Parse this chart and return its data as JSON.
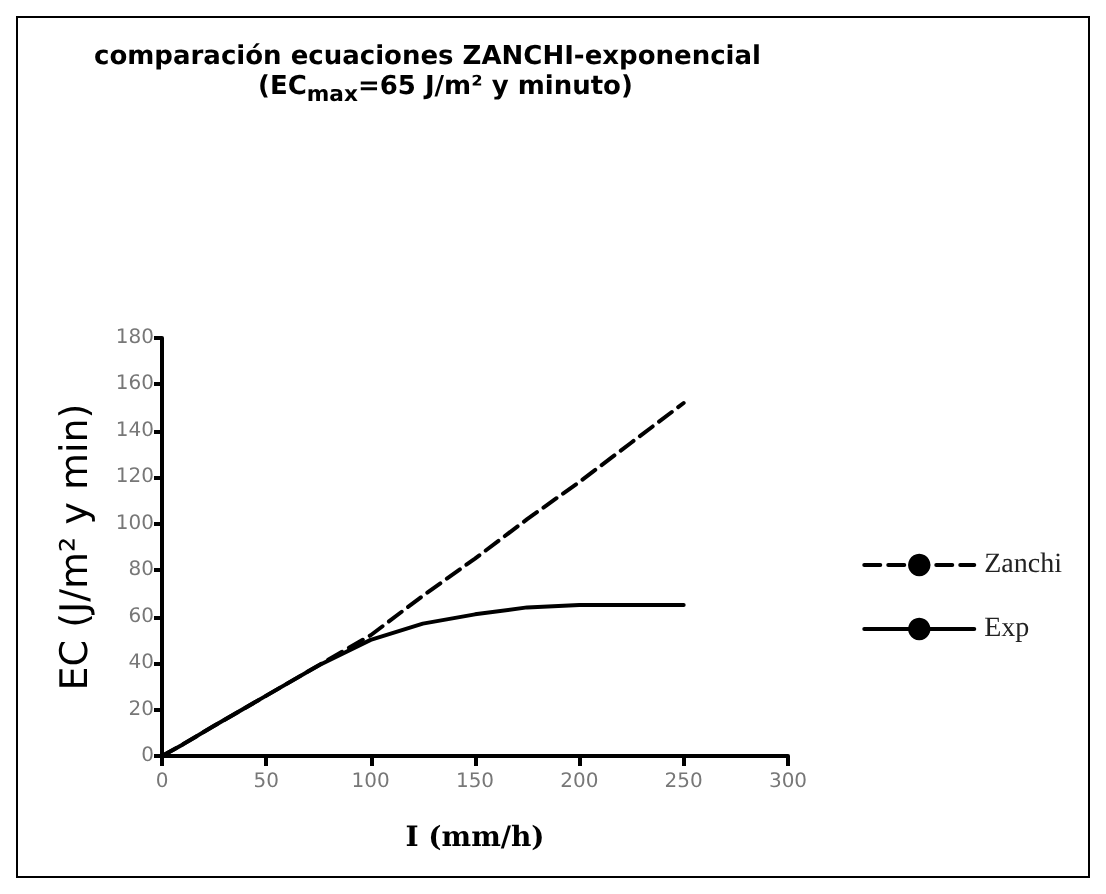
{
  "chart_data": {
    "type": "line",
    "title": "comparación ecuaciones ZANCHI-exponencial",
    "subtitle": "(EC$_{max}$=65 J/m² y minuto)",
    "xlabel": "I (mm/h)",
    "ylabel": "EC (J/m² y min)",
    "x": [
      0,
      10,
      25,
      50,
      75,
      100,
      125,
      150,
      175,
      200,
      225,
      250
    ],
    "series": [
      {
        "name": "Zanchi",
        "color": "#000000",
        "line_style": "dashed",
        "values": [
          0,
          5,
          13,
          26,
          39,
          52,
          69,
          85,
          102,
          118,
          135,
          152
        ]
      },
      {
        "name": "Exp",
        "color": "#000000",
        "line_style": "solid",
        "values": [
          0,
          5,
          13,
          26,
          39,
          50,
          57,
          61,
          64,
          65,
          65,
          65
        ]
      }
    ],
    "xlim": [
      0,
      300
    ],
    "xticks": [
      0,
      50,
      100,
      150,
      200,
      250,
      300
    ],
    "ylim": [
      0,
      180
    ],
    "yticks": [
      0,
      20,
      40,
      60,
      80,
      100,
      120,
      140,
      160,
      180
    ],
    "grid": false,
    "legend": "right",
    "marker": "none"
  }
}
